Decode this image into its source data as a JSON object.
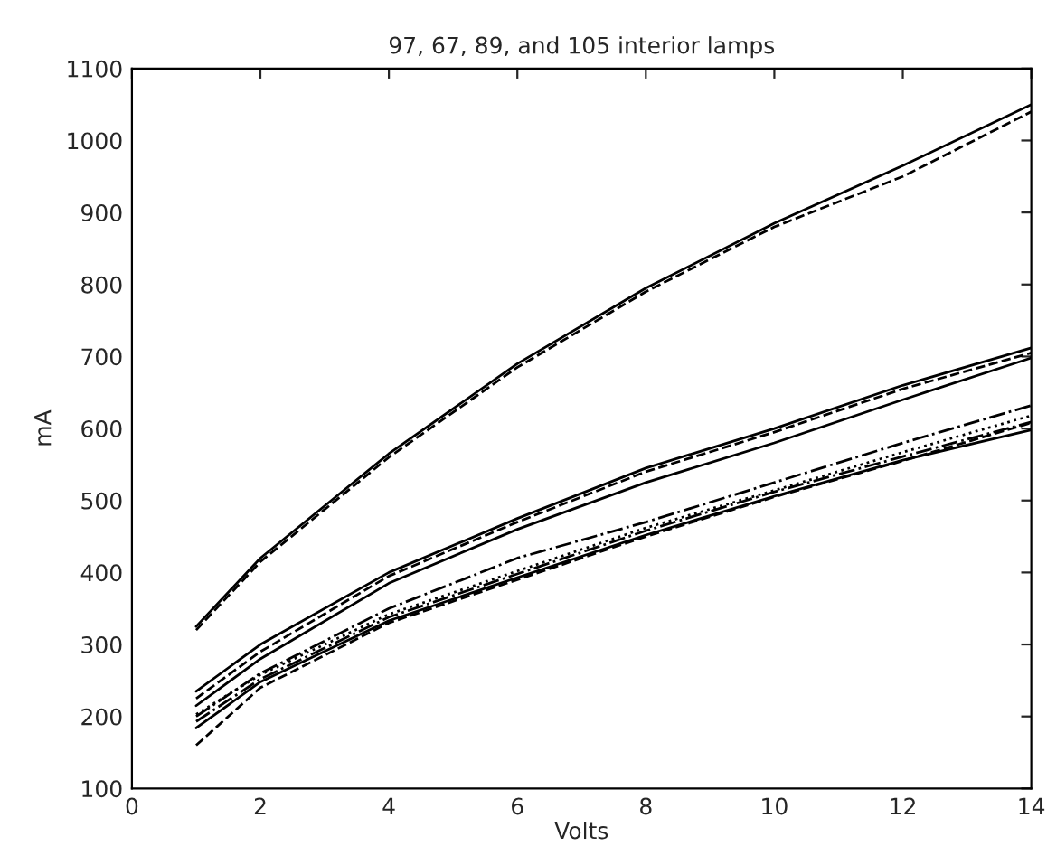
{
  "chart_data": {
    "type": "line",
    "title": "97, 67, 89, and 105 interior lamps",
    "xlabel": "Volts",
    "ylabel": "mA",
    "x": [
      1,
      2,
      4,
      6,
      8,
      10,
      12,
      14
    ],
    "series": [
      {
        "color": "#000000",
        "line_style": "solid",
        "values": [
          325,
          420,
          565,
          690,
          795,
          885,
          965,
          1050
        ]
      },
      {
        "color": "#000000",
        "line_style": "dashed",
        "values": [
          320,
          415,
          560,
          685,
          790,
          880,
          950,
          1040
        ]
      },
      {
        "color": "#000000",
        "line_style": "solid",
        "values": [
          235,
          300,
          400,
          475,
          545,
          600,
          660,
          712
        ]
      },
      {
        "color": "#000000",
        "line_style": "dashed",
        "values": [
          225,
          290,
          395,
          470,
          540,
          595,
          655,
          705
        ]
      },
      {
        "color": "#000000",
        "line_style": "solid",
        "values": [
          215,
          280,
          385,
          460,
          525,
          580,
          640,
          698
        ]
      },
      {
        "color": "#000000",
        "line_style": "dashdot",
        "values": [
          200,
          260,
          350,
          420,
          470,
          525,
          580,
          632
        ]
      },
      {
        "color": "#000000",
        "line_style": "solid",
        "values": [
          184,
          248,
          333,
          393,
          452,
          506,
          556,
          598
        ]
      },
      {
        "color": "#000000",
        "line_style": "dashed",
        "values": [
          160,
          240,
          330,
          390,
          450,
          505,
          555,
          608
        ]
      },
      {
        "color": "#000000",
        "line_style": "dotted",
        "values": [
          203,
          258,
          342,
          402,
          462,
          514,
          567,
          618
        ]
      },
      {
        "color": "#000000",
        "line_style": "dashdot",
        "values": [
          193,
          252,
          338,
          398,
          458,
          512,
          561,
          609
        ]
      }
    ],
    "xlim": [
      0,
      14
    ],
    "xticks": [
      0,
      2,
      4,
      6,
      8,
      10,
      12,
      14
    ],
    "ylim": [
      100,
      1100
    ],
    "yticks": [
      100,
      200,
      300,
      400,
      500,
      600,
      700,
      800,
      900,
      1000,
      1100
    ],
    "grid": false,
    "legend": false,
    "marker": "none"
  }
}
